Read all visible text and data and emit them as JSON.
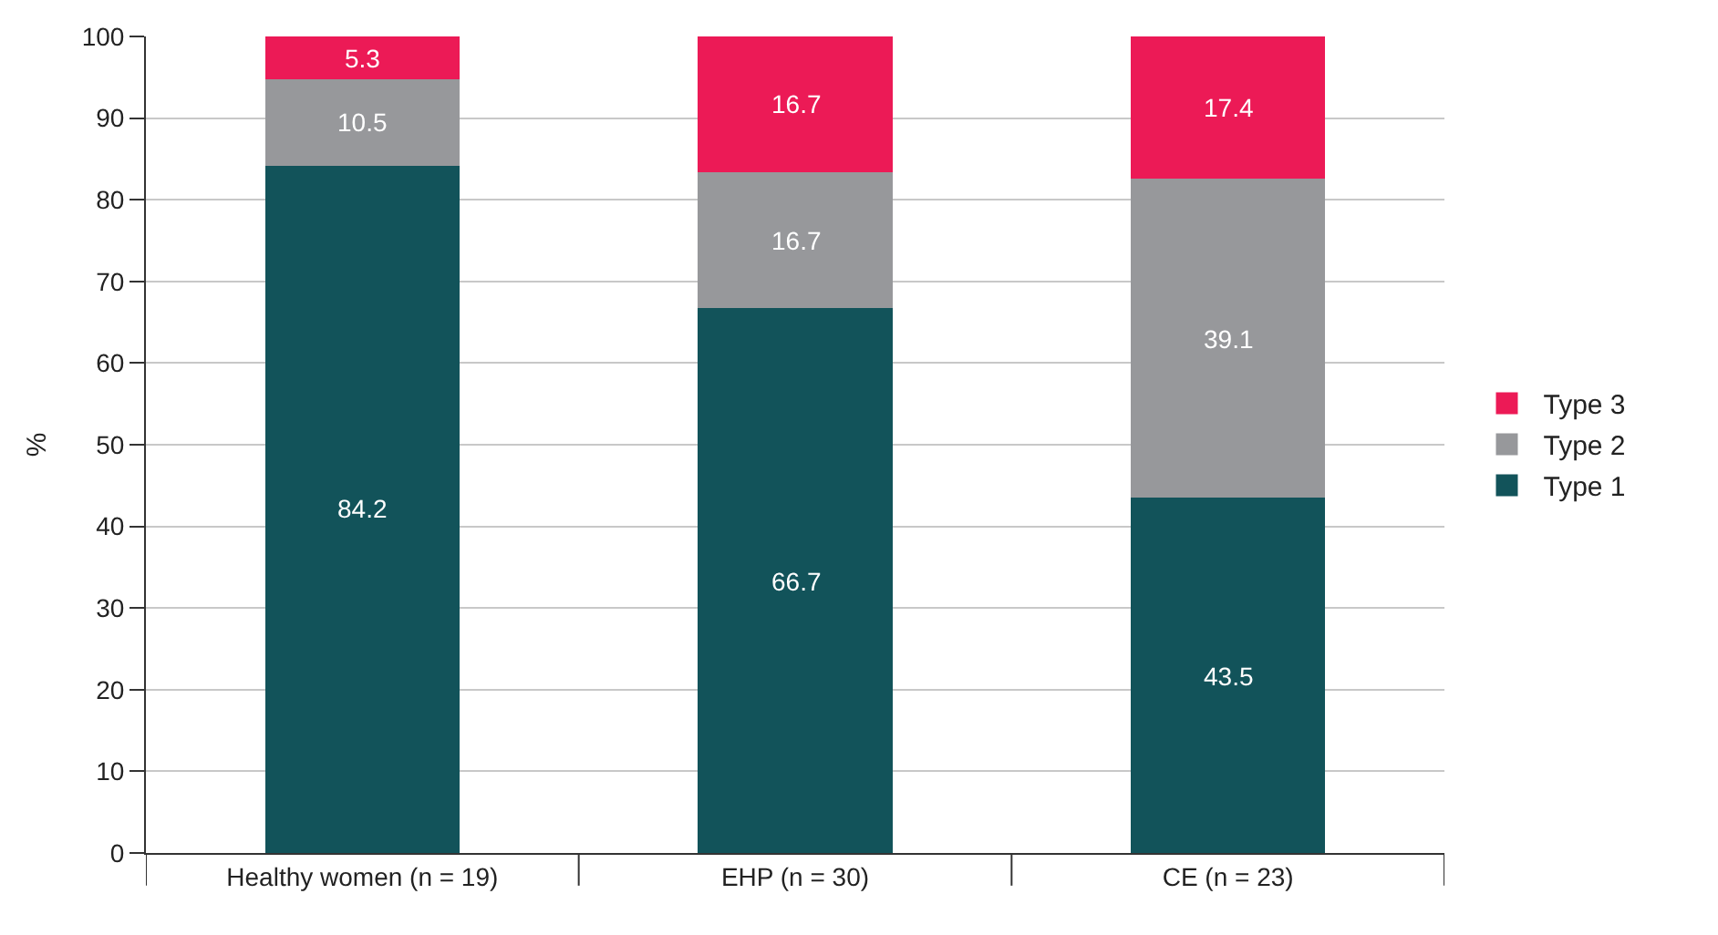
{
  "chart_data": {
    "type": "bar",
    "stacked": true,
    "ylabel": "%",
    "categories": [
      "Healthy women (n = 19)",
      "EHP (n = 30)",
      "CE (n = 23)"
    ],
    "series": [
      {
        "name": "Type 1",
        "color": "#12535a",
        "values": [
          84.2,
          66.7,
          43.5
        ]
      },
      {
        "name": "Type 2",
        "color": "#97989b",
        "values": [
          10.5,
          16.7,
          39.1
        ]
      },
      {
        "name": "Type 3",
        "color": "#ec1a56",
        "values": [
          5.3,
          16.7,
          17.4
        ]
      }
    ],
    "ylim": [
      0,
      100
    ],
    "yticks": [
      0,
      10,
      20,
      30,
      40,
      50,
      60,
      70,
      80,
      90,
      100
    ],
    "grid": "y",
    "legend": "right",
    "data_labels": true
  }
}
